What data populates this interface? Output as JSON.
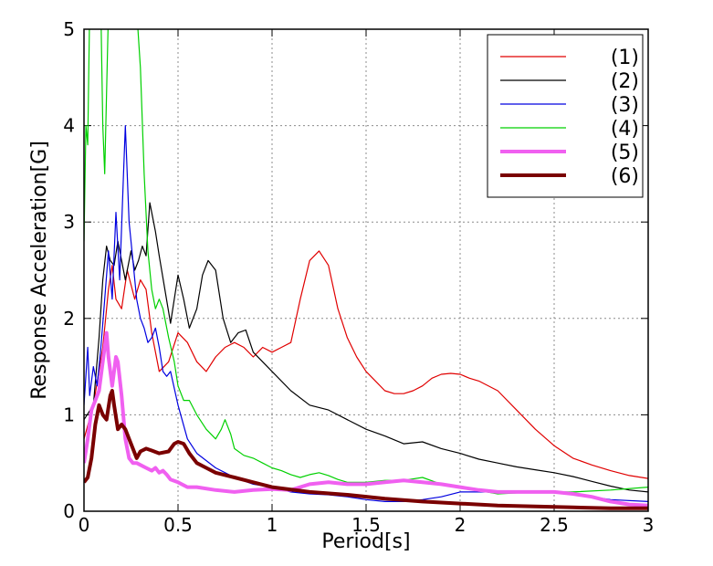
{
  "chart_data": {
    "type": "line",
    "title": "",
    "xlabel": "Period[s]",
    "ylabel": "Response Acceleration[G]",
    "xlim": [
      0,
      3
    ],
    "ylim": [
      0,
      5
    ],
    "xticks": [
      "0",
      "0.5",
      "1",
      "1.5",
      "2",
      "2.5",
      "3"
    ],
    "yticks": [
      "0",
      "1",
      "2",
      "3",
      "4",
      "5"
    ],
    "grid": true,
    "legend_position": "top-right",
    "series": [
      {
        "name": "(1)",
        "color": "#e00000",
        "width": 1.2,
        "x": [
          0.0,
          0.05,
          0.1,
          0.13,
          0.15,
          0.17,
          0.2,
          0.23,
          0.27,
          0.3,
          0.33,
          0.36,
          0.4,
          0.45,
          0.5,
          0.55,
          0.6,
          0.65,
          0.7,
          0.75,
          0.8,
          0.85,
          0.9,
          0.95,
          1.0,
          1.05,
          1.1,
          1.15,
          1.2,
          1.25,
          1.3,
          1.35,
          1.4,
          1.45,
          1.5,
          1.55,
          1.6,
          1.65,
          1.7,
          1.75,
          1.8,
          1.85,
          1.9,
          1.95,
          2.0,
          2.05,
          2.1,
          2.2,
          2.3,
          2.4,
          2.5,
          2.6,
          2.7,
          2.8,
          2.9,
          3.0
        ],
        "y": [
          0.75,
          1.1,
          1.7,
          2.3,
          2.55,
          2.2,
          2.1,
          2.5,
          2.2,
          2.4,
          2.3,
          1.85,
          1.45,
          1.55,
          1.85,
          1.75,
          1.55,
          1.45,
          1.6,
          1.7,
          1.75,
          1.7,
          1.6,
          1.7,
          1.65,
          1.7,
          1.75,
          2.2,
          2.6,
          2.7,
          2.55,
          2.1,
          1.8,
          1.6,
          1.45,
          1.35,
          1.25,
          1.22,
          1.22,
          1.25,
          1.3,
          1.38,
          1.42,
          1.43,
          1.42,
          1.38,
          1.35,
          1.25,
          1.05,
          0.85,
          0.68,
          0.55,
          0.48,
          0.42,
          0.37,
          0.34
        ]
      },
      {
        "name": "(2)",
        "color": "#000000",
        "width": 1.2,
        "x": [
          0.0,
          0.05,
          0.08,
          0.1,
          0.12,
          0.14,
          0.16,
          0.18,
          0.2,
          0.22,
          0.25,
          0.27,
          0.29,
          0.31,
          0.33,
          0.35,
          0.38,
          0.4,
          0.43,
          0.46,
          0.48,
          0.5,
          0.53,
          0.56,
          0.6,
          0.63,
          0.66,
          0.7,
          0.74,
          0.78,
          0.82,
          0.86,
          0.9,
          1.0,
          1.1,
          1.2,
          1.3,
          1.4,
          1.5,
          1.6,
          1.7,
          1.8,
          1.9,
          2.0,
          2.1,
          2.2,
          2.3,
          2.4,
          2.5,
          2.6,
          2.7,
          2.8,
          2.9,
          3.0
        ],
        "y": [
          0.95,
          1.1,
          1.8,
          2.4,
          2.75,
          2.6,
          2.55,
          2.8,
          2.6,
          2.4,
          2.7,
          2.5,
          2.6,
          2.75,
          2.65,
          3.2,
          2.9,
          2.65,
          2.3,
          1.95,
          2.2,
          2.45,
          2.2,
          1.9,
          2.1,
          2.45,
          2.6,
          2.5,
          2.0,
          1.75,
          1.85,
          1.88,
          1.65,
          1.45,
          1.25,
          1.1,
          1.05,
          0.95,
          0.85,
          0.78,
          0.7,
          0.72,
          0.65,
          0.6,
          0.54,
          0.5,
          0.46,
          0.43,
          0.4,
          0.36,
          0.31,
          0.26,
          0.22,
          0.2
        ]
      },
      {
        "name": "(3)",
        "color": "#0000e0",
        "width": 1.2,
        "x": [
          0.0,
          0.02,
          0.03,
          0.05,
          0.07,
          0.09,
          0.11,
          0.13,
          0.15,
          0.17,
          0.19,
          0.21,
          0.22,
          0.24,
          0.26,
          0.28,
          0.3,
          0.32,
          0.34,
          0.36,
          0.38,
          0.4,
          0.42,
          0.44,
          0.46,
          0.5,
          0.55,
          0.6,
          0.7,
          0.8,
          0.9,
          1.0,
          1.1,
          1.2,
          1.3,
          1.4,
          1.5,
          1.6,
          1.7,
          1.8,
          1.9,
          2.0,
          2.2,
          2.4,
          2.6,
          2.8,
          3.0
        ],
        "y": [
          1.1,
          1.7,
          1.2,
          1.5,
          1.3,
          1.7,
          2.2,
          2.7,
          2.2,
          3.1,
          2.4,
          3.5,
          4.0,
          3.0,
          2.6,
          2.2,
          2.0,
          1.9,
          1.75,
          1.8,
          1.9,
          1.7,
          1.45,
          1.4,
          1.45,
          1.1,
          0.75,
          0.6,
          0.45,
          0.35,
          0.28,
          0.25,
          0.2,
          0.18,
          0.17,
          0.15,
          0.12,
          0.1,
          0.1,
          0.12,
          0.15,
          0.2,
          0.2,
          0.2,
          0.18,
          0.12,
          0.1
        ]
      },
      {
        "name": "(4)",
        "color": "#00d000",
        "width": 1.2,
        "x": [
          0.0,
          0.01,
          0.02,
          0.03,
          0.05,
          0.07,
          0.09,
          0.1,
          0.11,
          0.13,
          0.15,
          0.17,
          0.2,
          0.23,
          0.26,
          0.28,
          0.3,
          0.32,
          0.34,
          0.36,
          0.38,
          0.4,
          0.42,
          0.45,
          0.48,
          0.5,
          0.53,
          0.56,
          0.6,
          0.65,
          0.7,
          0.73,
          0.75,
          0.78,
          0.8,
          0.85,
          0.9,
          0.95,
          1.0,
          1.05,
          1.1,
          1.15,
          1.2,
          1.25,
          1.3,
          1.35,
          1.4,
          1.5,
          1.6,
          1.7,
          1.8,
          1.9,
          2.0,
          2.2,
          2.4,
          2.6,
          2.8,
          3.0
        ],
        "y": [
          2.8,
          4.0,
          3.8,
          5.2,
          5.2,
          5.2,
          5.2,
          4.0,
          3.5,
          5.2,
          5.2,
          5.2,
          5.2,
          5.2,
          5.2,
          5.2,
          4.6,
          3.5,
          2.7,
          2.3,
          2.1,
          2.2,
          2.1,
          1.8,
          1.55,
          1.3,
          1.15,
          1.15,
          1.0,
          0.85,
          0.75,
          0.85,
          0.95,
          0.8,
          0.65,
          0.58,
          0.55,
          0.5,
          0.45,
          0.42,
          0.38,
          0.35,
          0.38,
          0.4,
          0.37,
          0.33,
          0.3,
          0.3,
          0.32,
          0.32,
          0.35,
          0.28,
          0.25,
          0.18,
          0.2,
          0.2,
          0.22,
          0.25
        ]
      },
      {
        "name": "(5)",
        "color": "#f060f0",
        "width": 4,
        "x": [
          0.0,
          0.02,
          0.04,
          0.06,
          0.08,
          0.1,
          0.12,
          0.13,
          0.15,
          0.17,
          0.18,
          0.2,
          0.22,
          0.24,
          0.26,
          0.28,
          0.3,
          0.33,
          0.36,
          0.38,
          0.4,
          0.42,
          0.44,
          0.46,
          0.5,
          0.55,
          0.6,
          0.7,
          0.8,
          0.9,
          1.0,
          1.1,
          1.2,
          1.3,
          1.4,
          1.5,
          1.6,
          1.7,
          1.8,
          1.9,
          2.0,
          2.1,
          2.2,
          2.3,
          2.4,
          2.5,
          2.6,
          2.7,
          2.8,
          2.9,
          3.0
        ],
        "y": [
          0.5,
          0.75,
          1.05,
          1.15,
          1.25,
          1.55,
          1.85,
          1.6,
          1.3,
          1.6,
          1.55,
          1.2,
          0.75,
          0.55,
          0.5,
          0.5,
          0.48,
          0.45,
          0.42,
          0.45,
          0.4,
          0.42,
          0.38,
          0.33,
          0.3,
          0.25,
          0.25,
          0.22,
          0.2,
          0.22,
          0.23,
          0.22,
          0.28,
          0.3,
          0.28,
          0.28,
          0.3,
          0.32,
          0.3,
          0.28,
          0.25,
          0.22,
          0.2,
          0.2,
          0.2,
          0.2,
          0.18,
          0.15,
          0.1,
          0.07,
          0.06
        ]
      },
      {
        "name": "(6)",
        "color": "#7a0000",
        "width": 4,
        "x": [
          0.0,
          0.02,
          0.04,
          0.06,
          0.08,
          0.1,
          0.12,
          0.14,
          0.15,
          0.16,
          0.18,
          0.2,
          0.22,
          0.25,
          0.28,
          0.3,
          0.33,
          0.36,
          0.4,
          0.45,
          0.48,
          0.5,
          0.53,
          0.56,
          0.6,
          0.65,
          0.7,
          0.8,
          0.9,
          1.0,
          1.2,
          1.4,
          1.6,
          1.8,
          2.0,
          2.2,
          2.4,
          2.6,
          2.8,
          3.0
        ],
        "y": [
          0.3,
          0.35,
          0.55,
          0.9,
          1.1,
          1.0,
          0.95,
          1.2,
          1.25,
          1.1,
          0.85,
          0.9,
          0.85,
          0.7,
          0.55,
          0.62,
          0.65,
          0.63,
          0.6,
          0.62,
          0.7,
          0.72,
          0.7,
          0.6,
          0.5,
          0.45,
          0.4,
          0.35,
          0.3,
          0.25,
          0.2,
          0.17,
          0.13,
          0.1,
          0.08,
          0.06,
          0.05,
          0.04,
          0.03,
          0.03
        ]
      }
    ]
  }
}
